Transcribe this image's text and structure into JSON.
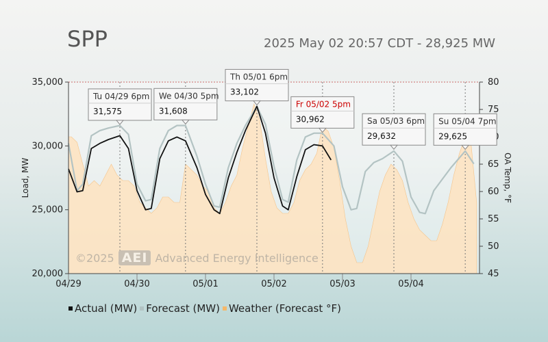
{
  "header": {
    "title": "SPP",
    "subtitle": "2025 May 02 20:57 CDT - 28,925 MW"
  },
  "watermark": {
    "copyright": "©2025",
    "logo": "AEI",
    "company": "Advanced Energy Intelligence"
  },
  "colors": {
    "actual": "#111111",
    "forecast": "#b3c3c3",
    "weather_fill": "#fde3c2",
    "weather_stroke": "#f5c48a",
    "callout_red": "#cc0000"
  },
  "chart_data": {
    "type": "line",
    "x_start": "2025-04-29",
    "x_end": "2025-05-05",
    "x_ticks": [
      "04/29",
      "04/30",
      "05/01",
      "05/02",
      "05/03",
      "05/04"
    ],
    "ylabel": "Load, MW",
    "y2label": "OA Temp, °F",
    "ylim": [
      20000,
      35000
    ],
    "y_ticks": [
      "20,000",
      "25,000",
      "30,000",
      "35,000"
    ],
    "y2lim": [
      45,
      80
    ],
    "y2_ticks": [
      "45",
      "50",
      "55",
      "60",
      "65",
      "70",
      "75",
      "80"
    ],
    "series": [
      {
        "name": "Actual (MW)",
        "axis": "left",
        "x": [
          "04/29 00:00",
          "04/29 03:00",
          "04/29 05:00",
          "04/29 08:00",
          "04/29 11:00",
          "04/29 14:00",
          "04/29 18:00",
          "04/29 21:00",
          "04/30 00:00",
          "04/30 03:00",
          "04/30 05:00",
          "04/30 08:00",
          "04/30 11:00",
          "04/30 14:00",
          "04/30 17:00",
          "04/30 21:00",
          "05/01 00:00",
          "05/01 03:00",
          "05/01 05:00",
          "05/01 08:00",
          "05/01 11:00",
          "05/01 14:00",
          "05/01 18:00",
          "05/01 21:00",
          "05/02 00:00",
          "05/02 03:00",
          "05/02 05:00",
          "05/02 08:00",
          "05/02 11:00",
          "05/02 14:00",
          "05/02 17:00",
          "05/02 20:00"
        ],
        "values": [
          28200,
          26400,
          26500,
          29800,
          30200,
          30500,
          30800,
          29800,
          26500,
          25000,
          25100,
          29000,
          30400,
          30700,
          30400,
          28300,
          26200,
          25000,
          24700,
          27500,
          29500,
          31200,
          33100,
          31000,
          27500,
          25300,
          25000,
          27600,
          29700,
          30100,
          30000,
          28900
        ]
      },
      {
        "name": "Forecast (MW)",
        "axis": "left",
        "x": [
          "04/29 00:00",
          "04/29 03:00",
          "04/29 05:00",
          "04/29 08:00",
          "04/29 11:00",
          "04/29 14:00",
          "04/29 18:00",
          "04/29 21:00",
          "04/30 00:00",
          "04/30 03:00",
          "04/30 05:00",
          "04/30 08:00",
          "04/30 11:00",
          "04/30 14:00",
          "04/30 17:00",
          "04/30 21:00",
          "05/01 00:00",
          "05/01 03:00",
          "05/01 05:00",
          "05/01 08:00",
          "05/01 11:00",
          "05/01 14:00",
          "05/01 18:00",
          "05/01 21:00",
          "05/02 00:00",
          "05/02 03:00",
          "05/02 05:00",
          "05/02 08:00",
          "05/02 11:00",
          "05/02 14:00",
          "05/02 17:00",
          "05/02 21:00",
          "05/03 00:00",
          "05/03 03:00",
          "05/03 05:00",
          "05/03 08:00",
          "05/03 11:00",
          "05/03 14:00",
          "05/03 18:00",
          "05/03 21:00",
          "05/04 00:00",
          "05/04 03:00",
          "05/04 05:00",
          "05/04 08:00",
          "05/04 11:00",
          "05/04 14:00",
          "05/04 19:00",
          "05/04 22:00"
        ],
        "values": [
          30200,
          26500,
          27000,
          30800,
          31200,
          31400,
          31600,
          30900,
          27000,
          25700,
          25800,
          29800,
          31200,
          31600,
          31600,
          29200,
          27000,
          25300,
          25200,
          28300,
          30200,
          31600,
          33100,
          31700,
          28400,
          25800,
          25600,
          28900,
          30700,
          31000,
          31000,
          30000,
          26800,
          25000,
          25100,
          28000,
          28700,
          29000,
          29600,
          28800,
          26000,
          24800,
          24700,
          26500,
          27400,
          28300,
          29600,
          28600
        ]
      },
      {
        "name": "Weather (Forecast °F)",
        "axis": "right",
        "x": [
          "04/29 00:00",
          "04/29 01:00",
          "04/29 03:00",
          "04/29 05:00",
          "04/29 07:00",
          "04/29 09:00",
          "04/29 11:00",
          "04/29 13:00",
          "04/29 15:00",
          "04/29 17:00",
          "04/29 19:00",
          "04/29 21:00",
          "04/29 23:00",
          "04/30 01:00",
          "04/30 03:00",
          "04/30 05:00",
          "04/30 07:00",
          "04/30 09:00",
          "04/30 11:00",
          "04/30 13:00",
          "04/30 15:00",
          "04/30 17:00",
          "04/30 19:00",
          "04/30 21:00",
          "04/30 23:00",
          "05/01 01:00",
          "05/01 03:00",
          "05/01 05:00",
          "05/01 07:00",
          "05/01 09:00",
          "05/01 11:00",
          "05/01 13:00",
          "05/01 15:00",
          "05/01 17:00",
          "05/01 19:00",
          "05/01 21:00",
          "05/01 23:00",
          "05/02 01:00",
          "05/02 03:00",
          "05/02 05:00",
          "05/02 07:00",
          "05/02 09:00",
          "05/02 11:00",
          "05/02 13:00",
          "05/02 15:00",
          "05/02 17:00",
          "05/02 19:00",
          "05/02 21:00",
          "05/02 23:00",
          "05/03 01:00",
          "05/03 03:00",
          "05/03 05:00",
          "05/03 07:00",
          "05/03 09:00",
          "05/03 11:00",
          "05/03 13:00",
          "05/03 15:00",
          "05/03 17:00",
          "05/03 19:00",
          "05/03 21:00",
          "05/03 23:00",
          "05/04 01:00",
          "05/04 03:00",
          "05/04 05:00",
          "05/04 07:00",
          "05/04 09:00",
          "05/04 11:00",
          "05/04 13:00",
          "05/04 15:00",
          "05/04 17:00",
          "05/04 19:00",
          "05/04 21:00",
          "05/04 23:00"
        ],
        "values": [
          70,
          70,
          69,
          65,
          61,
          62,
          61,
          63,
          65,
          63,
          62,
          62,
          61,
          58,
          57,
          56,
          57,
          59,
          59,
          58,
          58,
          65,
          64,
          63,
          61,
          60,
          57,
          56,
          58,
          61,
          63,
          68,
          72,
          76,
          73,
          66,
          60,
          57,
          56,
          56,
          58,
          62,
          64,
          65,
          67,
          72,
          71,
          68,
          62,
          55,
          50,
          47,
          47,
          50,
          55,
          60,
          63,
          65,
          64,
          62,
          58,
          55,
          53,
          52,
          51,
          51,
          54,
          58,
          63,
          67,
          70,
          69,
          58
        ]
      }
    ],
    "markers": [
      {
        "label": "Tu 04/29 6pm",
        "value": "31,575",
        "x": "04/29 18:00",
        "y": 31575,
        "highlight": false
      },
      {
        "label": "We 04/30 5pm",
        "value": "31,608",
        "x": "04/30 17:00",
        "y": 31608,
        "highlight": false
      },
      {
        "label": "Th 05/01 6pm",
        "value": "33,102",
        "x": "05/01 18:00",
        "y": 33102,
        "highlight": false
      },
      {
        "label": "Fr 05/02 5pm",
        "value": "30,962",
        "x": "05/02 17:00",
        "y": 30962,
        "highlight": true
      },
      {
        "label": "Sa 05/03 6pm",
        "value": "29,632",
        "x": "05/03 18:00",
        "y": 29632,
        "highlight": false
      },
      {
        "label": "Su 05/04 7pm",
        "value": "29,625",
        "x": "05/04 19:00",
        "y": 29625,
        "highlight": false
      }
    ],
    "legend": [
      "Actual (MW)",
      "Forecast (MW)",
      "Weather (Forecast °F)"
    ],
    "grid": true,
    "legend_position": "bottom-left"
  }
}
